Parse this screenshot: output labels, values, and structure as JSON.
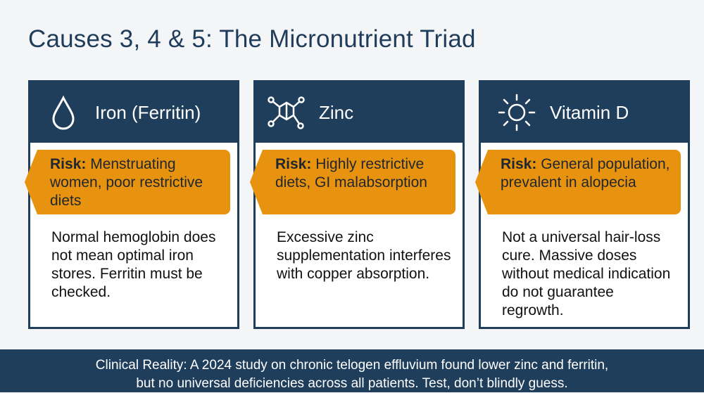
{
  "header": {
    "title": "Causes 3, 4 & 5: The Micronutrient Triad"
  },
  "cards": [
    {
      "title": "Iron (Ferritin)",
      "risk_label": "Risk:",
      "risk_text": "Menstruating women, poor restrictive diets",
      "body": "Normal hemoglobin does not mean optimal iron stores. Ferritin must be checked."
    },
    {
      "title": "Zinc",
      "risk_label": "Risk:",
      "risk_text": "Highly restrictive diets, GI malabsorption",
      "body": "Excessive zinc supplementation interferes with copper absorption."
    },
    {
      "title": "Vitamin D",
      "risk_label": "Risk:",
      "risk_text": "General population, prevalent in alopecia",
      "body": "Not a universal hair-loss cure. Massive doses without medical indication do not guarantee regrowth."
    }
  ],
  "footer": {
    "line1": "Clinical Reality: A 2024 study on chronic telogen effluvium found lower zinc and ferritin,",
    "line2": "but no universal deficiencies across all patients. Test, don’t blindly guess."
  }
}
